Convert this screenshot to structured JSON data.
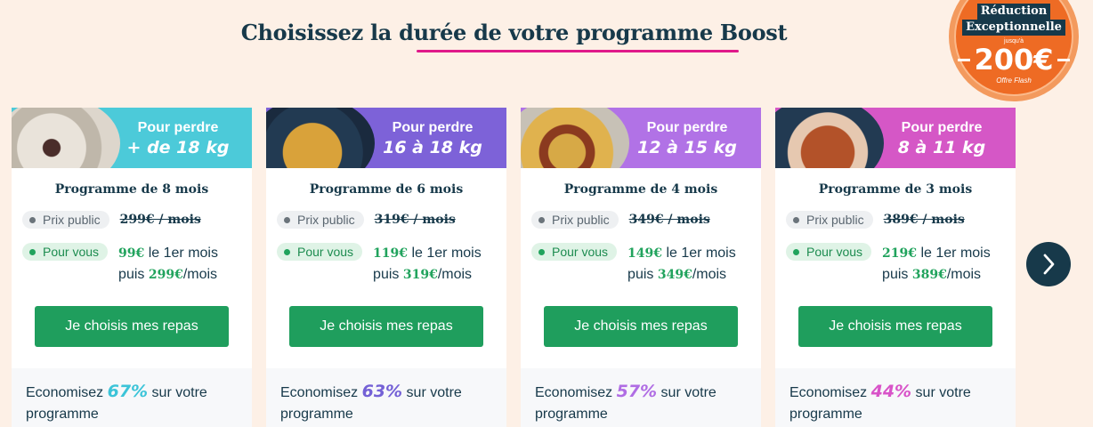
{
  "header": {
    "title": "Choisissez la durée de votre programme Boost"
  },
  "badge": {
    "line1": "Réduction",
    "line2": "Exceptionnelle",
    "upto": "jusqu'à",
    "amount": "200€",
    "flash": "Offre Flash"
  },
  "cards": [
    {
      "head_l1": "Pour perdre",
      "head_l2": "+ de 18 kg",
      "program": "Programme de 8 mois",
      "public_label": "Prix public",
      "public_price": "299€ / mois",
      "you_label": "Pour vous",
      "first_price": "99€",
      "first_text": "le 1er mois",
      "then_text": "puis",
      "then_price": "299€",
      "then_suffix": "/mois",
      "cta": "Je choisis mes repas",
      "save_pre": "Economisez",
      "save_pct": "67%",
      "save_post": "sur votre programme",
      "head_color": "#4ccad9",
      "pct_color": "#3cc4d8"
    },
    {
      "head_l1": "Pour perdre",
      "head_l2": "16 à 18 kg",
      "program": "Programme de 6 mois",
      "public_label": "Prix public",
      "public_price": "319€ / mois",
      "you_label": "Pour vous",
      "first_price": "119€",
      "first_text": "le 1er mois",
      "then_text": "puis",
      "then_price": "319€",
      "then_suffix": "/mois",
      "cta": "Je choisis mes repas",
      "save_pre": "Economisez",
      "save_pct": "63%",
      "save_post": "sur votre programme",
      "head_color": "#7d62d8",
      "pct_color": "#7461d6"
    },
    {
      "head_l1": "Pour perdre",
      "head_l2": "12 à 15 kg",
      "program": "Programme de 4 mois",
      "public_label": "Prix public",
      "public_price": "349€ / mois",
      "you_label": "Pour vous",
      "first_price": "149€",
      "first_text": "le 1er mois",
      "then_text": "puis",
      "then_price": "349€",
      "then_suffix": "/mois",
      "cta": "Je choisis mes repas",
      "save_pre": "Economisez",
      "save_pct": "57%",
      "save_post": "sur votre programme",
      "head_color": "#b172e6",
      "pct_color": "#b06de4"
    },
    {
      "head_l1": "Pour perdre",
      "head_l2": "8 à 11 kg",
      "program": "Programme de 3 mois",
      "public_label": "Prix public",
      "public_price": "389€ / mois",
      "you_label": "Pour vous",
      "first_price": "219€",
      "first_text": "le 1er mois",
      "then_text": "puis",
      "then_price": "389€",
      "then_suffix": "/mois",
      "cta": "Je choisis mes repas",
      "save_pre": "Economisez",
      "save_pct": "44%",
      "save_post": "sur votre programme",
      "head_color": "#d557c6",
      "pct_color": "#d853c8"
    }
  ],
  "nav": {
    "next_icon": "chevron-right-icon"
  }
}
